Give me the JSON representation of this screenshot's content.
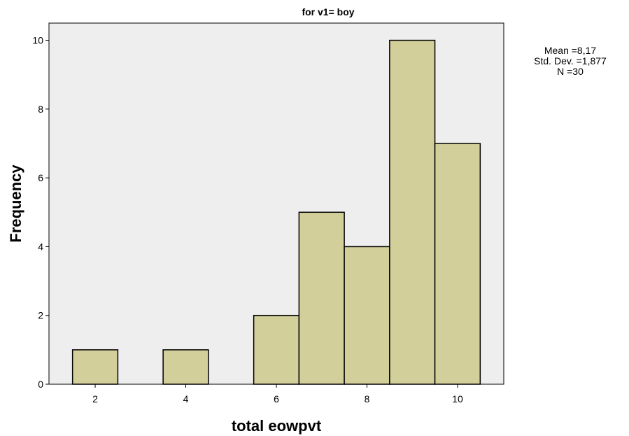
{
  "chart_data": {
    "type": "bar",
    "title": "for v1= boy",
    "xlabel": "total eowpvt",
    "ylabel": "Frequency",
    "x_ticks": [
      2,
      4,
      6,
      8,
      10
    ],
    "y_ticks": [
      0,
      2,
      4,
      6,
      8,
      10
    ],
    "xlim": [
      0.98,
      11.02
    ],
    "ylim": [
      0,
      10.5
    ],
    "bins": [
      {
        "x": 2,
        "value": 1
      },
      {
        "x": 4,
        "value": 1
      },
      {
        "x": 6,
        "value": 2
      },
      {
        "x": 7,
        "value": 5
      },
      {
        "x": 8,
        "value": 4
      },
      {
        "x": 9,
        "value": 10
      },
      {
        "x": 10,
        "value": 7
      }
    ],
    "bin_width": 1,
    "bar_color": "#D3CF9B",
    "plot_background": "#EEEEEF",
    "grid": false
  },
  "stats": {
    "mean": "Mean =8,17",
    "std_dev": "Std. Dev. =1,877",
    "n": "N =30"
  }
}
